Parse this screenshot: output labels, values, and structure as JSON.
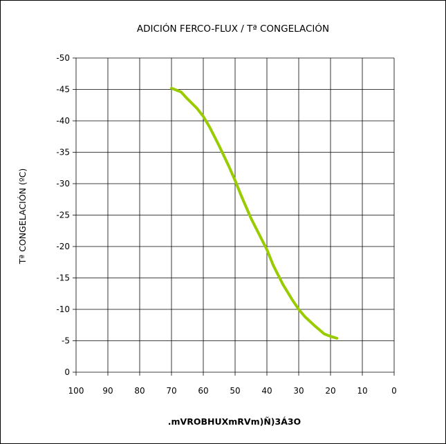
{
  "chart_data": {
    "type": "line",
    "title": "ADICIÓN FERCO-FLUX / Tª CONGELACIÓN",
    "xlabel": ".mVROBHUXmRVm)Ñ)3Á3O",
    "ylabel": "Tª CONGELACIÓN (ºC)",
    "xlim": [
      100,
      0
    ],
    "ylim": [
      0,
      -50
    ],
    "x_ticks": [
      "100",
      "90",
      "80",
      "70",
      "60",
      "50",
      "40",
      "30",
      "20",
      "10",
      "0"
    ],
    "y_ticks": [
      "0",
      "-5",
      "-10",
      "-15",
      "-20",
      "-25",
      "-30",
      "-35",
      "-40",
      "-45",
      "-50"
    ],
    "grid": true,
    "legend": "none",
    "series": [
      {
        "color": "#99cc00",
        "x": [
          70,
          67,
          65,
          62,
          60,
          58,
          55,
          52,
          50,
          48,
          45,
          42,
          40,
          38,
          35,
          32,
          30,
          28,
          25,
          22,
          20,
          18
        ],
        "y": [
          -45.2,
          -44.6,
          -43.5,
          -42,
          -40.7,
          -39,
          -36,
          -32.8,
          -30.5,
          -28,
          -24.5,
          -21.5,
          -19.5,
          -17,
          -14,
          -11.5,
          -10,
          -8.8,
          -7.4,
          -6.1,
          -5.7,
          -5.4
        ]
      }
    ]
  }
}
